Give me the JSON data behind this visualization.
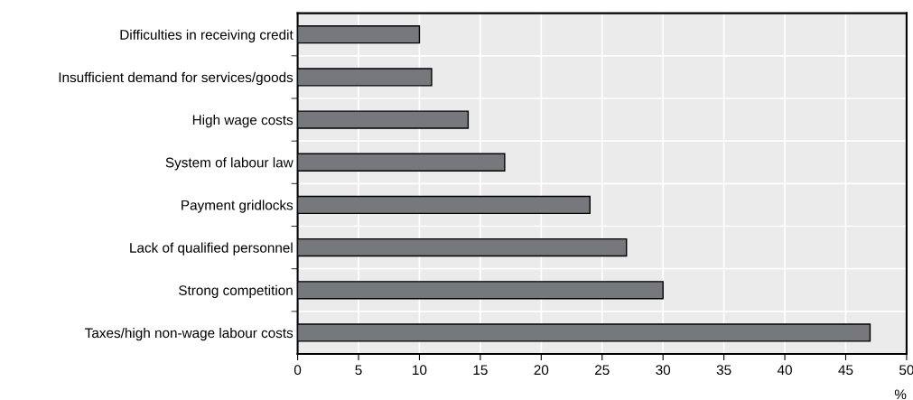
{
  "chart_data": {
    "type": "bar",
    "orientation": "horizontal",
    "xlabel": "%",
    "categories": [
      "Difficulties in receiving credit",
      "Insufficient demand for services/goods",
      "High wage costs",
      "System of labour law",
      "Payment gridlocks",
      "Lack of qualified personnel",
      "Strong competition",
      "Taxes/high non-wage labour costs"
    ],
    "values": [
      10,
      11,
      14,
      17,
      24,
      27,
      30,
      47
    ],
    "color": "#77787c",
    "xlim": [
      0,
      50
    ],
    "xticks": [
      0,
      5,
      10,
      15,
      20,
      25,
      30,
      35,
      40,
      45,
      50
    ],
    "grid": true
  }
}
